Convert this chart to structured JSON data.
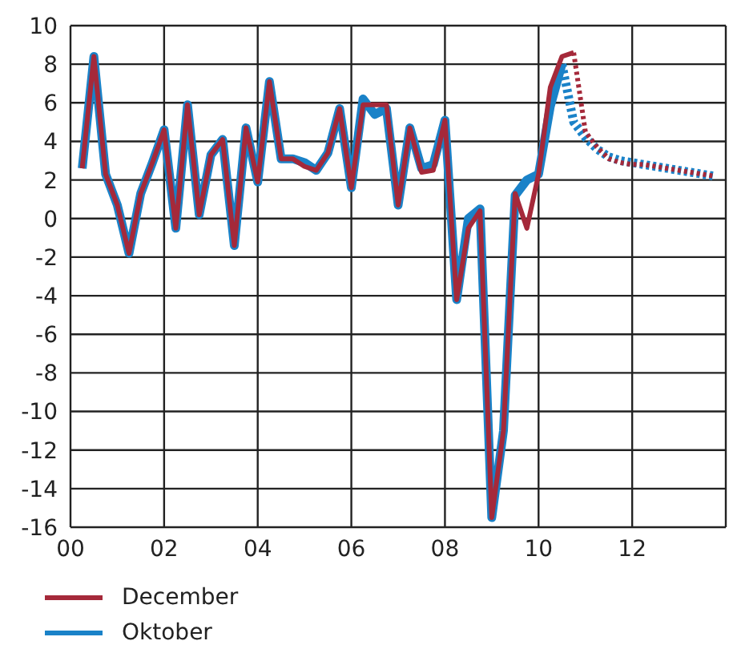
{
  "chart_data": {
    "type": "line",
    "x": [
      2000.25,
      2000.5,
      2000.75,
      2001,
      2001.25,
      2001.5,
      2001.75,
      2002,
      2002.25,
      2002.5,
      2002.75,
      2003,
      2003.25,
      2003.5,
      2003.75,
      2004,
      2004.25,
      2004.5,
      2004.75,
      2005,
      2005.25,
      2005.5,
      2005.75,
      2006,
      2006.25,
      2006.5,
      2006.75,
      2007,
      2007.25,
      2007.5,
      2007.75,
      2008,
      2008.25,
      2008.5,
      2008.75,
      2009,
      2009.25,
      2009.5,
      2009.75,
      2010,
      2010.25,
      2010.5,
      2010.75,
      2011,
      2011.25,
      2011.5,
      2011.75,
      2012,
      2012.25,
      2012.5,
      2012.75,
      2013,
      2013.25,
      2013.5,
      2013.75
    ],
    "series": [
      {
        "name": "December",
        "color": "#a5293a",
        "line_style": "solid",
        "values": [
          2.6,
          8.4,
          2.3,
          0.7,
          -1.8,
          1.3,
          2.9,
          4.6,
          -0.5,
          5.9,
          0.2,
          3.3,
          4.1,
          -1.4,
          4.7,
          1.9,
          7.1,
          3.1,
          3.1,
          2.7,
          2.5,
          3.4,
          5.7,
          1.6,
          5.9,
          5.9,
          5.9,
          0.7,
          4.7,
          2.4,
          2.5,
          5.1,
          -4.2,
          -0.5,
          0.4,
          -15.5,
          -11,
          1.3,
          -0.5,
          2.3,
          6.8,
          8.4,
          8.6,
          null,
          null,
          null,
          null,
          null,
          null,
          null,
          null,
          null,
          null,
          null,
          null
        ]
      },
      {
        "name": "Oktober",
        "color": "#1a82c8",
        "line_style": "solid",
        "values": [
          2.6,
          8.4,
          2.3,
          0.7,
          -1.8,
          1.3,
          2.9,
          4.6,
          -0.5,
          5.9,
          0.2,
          3.3,
          4.1,
          -1.4,
          4.7,
          1.9,
          7.1,
          3.1,
          3.1,
          2.9,
          2.5,
          3.4,
          5.7,
          1.6,
          6.2,
          5.4,
          5.7,
          0.7,
          4.7,
          2.6,
          2.8,
          5.1,
          -4.2,
          0,
          0.5,
          -15.5,
          -11,
          1.2,
          2.0,
          2.3,
          5.8,
          8.0,
          null,
          null,
          null,
          null,
          null,
          null,
          null,
          null,
          null,
          null,
          null,
          null,
          null
        ]
      },
      {
        "color": "#a5293a",
        "line_style": "dotted",
        "values": [
          null,
          null,
          null,
          null,
          null,
          null,
          null,
          null,
          null,
          null,
          null,
          null,
          null,
          null,
          null,
          null,
          null,
          null,
          null,
          null,
          null,
          null,
          null,
          null,
          null,
          null,
          null,
          null,
          null,
          null,
          null,
          null,
          null,
          null,
          null,
          null,
          null,
          null,
          null,
          null,
          null,
          null,
          8.6,
          4.5,
          3.7,
          3.1,
          2.9,
          2.8,
          2.8,
          2.7,
          2.6,
          2.5,
          2.4,
          2.3,
          2.2
        ]
      },
      {
        "color": "#1a82c8",
        "line_style": "dotted",
        "values": [
          null,
          null,
          null,
          null,
          null,
          null,
          null,
          null,
          null,
          null,
          null,
          null,
          null,
          null,
          null,
          null,
          null,
          null,
          null,
          null,
          null,
          null,
          null,
          null,
          null,
          null,
          null,
          null,
          null,
          null,
          null,
          null,
          null,
          null,
          null,
          null,
          null,
          null,
          null,
          null,
          null,
          8.0,
          5.0,
          4.2,
          3.6,
          3.2,
          3.0,
          2.9,
          2.8,
          2.7,
          2.6,
          2.5,
          2.4,
          2.3,
          2.2
        ]
      }
    ],
    "xlim": [
      2000,
      2014
    ],
    "xticks": [
      {
        "value": 2000,
        "label": "00"
      },
      {
        "value": 2002,
        "label": "02"
      },
      {
        "value": 2004,
        "label": "04"
      },
      {
        "value": 2006,
        "label": "06"
      },
      {
        "value": 2008,
        "label": "08"
      },
      {
        "value": 2010,
        "label": "10"
      },
      {
        "value": 2012,
        "label": "12"
      }
    ],
    "ylim": [
      -16,
      10
    ],
    "yticks": [
      -16,
      -14,
      -12,
      -10,
      -8,
      -6,
      -4,
      -2,
      0,
      2,
      4,
      6,
      8,
      10
    ],
    "grid": true,
    "legend": "bottom left"
  }
}
